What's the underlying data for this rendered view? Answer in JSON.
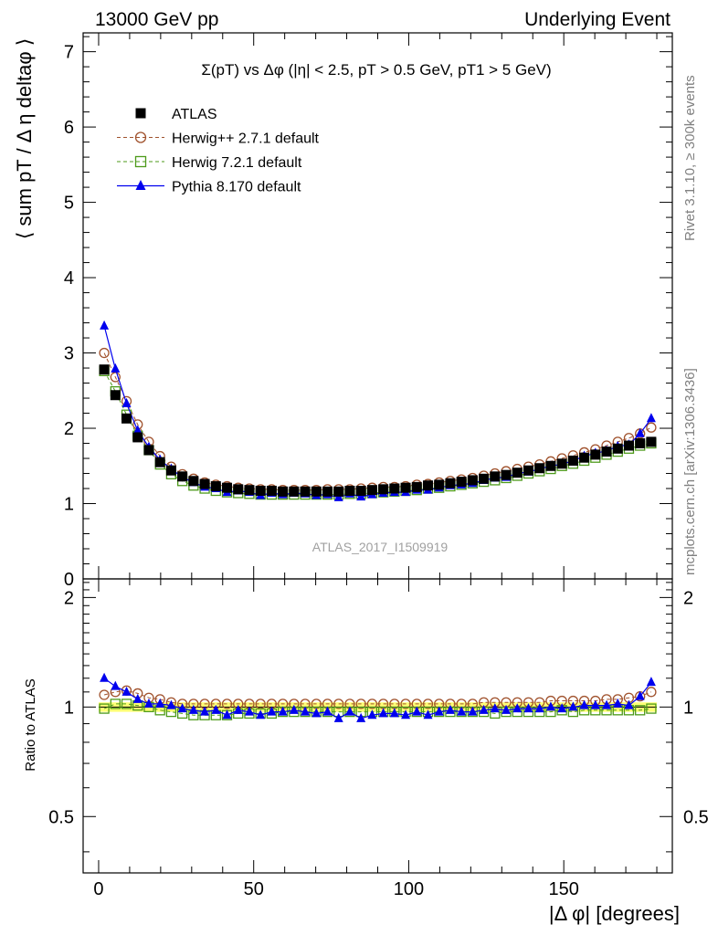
{
  "header": {
    "left": "13000 GeV pp",
    "right": "Underlying Event"
  },
  "side_labels": {
    "rivet": "Rivet 3.1.10, ≥ 300k events",
    "mcplots": "mcplots.cern.ch [arXiv:1306.3436]"
  },
  "chart_data": [
    {
      "type": "scatter",
      "title": "Σ(pT) vs Δφ (|η| < 2.5, pT > 0.5 GeV, pT1 > 5 GeV)",
      "ylabel": "⟨ sum pT / Δ η deltaφ ⟩",
      "xlabel": "",
      "xlim": [
        -5,
        185
      ],
      "ylim": [
        0,
        7.25
      ],
      "x_ticks": [
        0,
        50,
        100,
        150
      ],
      "y_ticks": [
        0,
        1,
        2,
        3,
        4,
        5,
        6,
        7
      ],
      "watermark": "ATLAS_2017_I1509919",
      "legend_position": "top-left",
      "x": [
        1.8,
        5.4,
        9.0,
        12.6,
        16.2,
        19.8,
        23.4,
        27.0,
        30.6,
        34.2,
        37.8,
        41.4,
        45.0,
        48.6,
        52.2,
        55.8,
        59.4,
        63.0,
        66.6,
        70.2,
        73.8,
        77.4,
        81.0,
        84.6,
        88.2,
        91.8,
        95.4,
        99.0,
        102.6,
        106.2,
        109.8,
        113.4,
        117.0,
        120.6,
        124.2,
        127.8,
        131.4,
        135.0,
        138.6,
        142.2,
        145.8,
        149.4,
        153.0,
        156.6,
        160.2,
        163.8,
        167.4,
        171.0,
        174.6,
        178.2
      ],
      "series": [
        {
          "name": "ATLAS",
          "color": "#000000",
          "marker": "filled-square",
          "values": [
            2.78,
            2.44,
            2.13,
            1.88,
            1.71,
            1.55,
            1.44,
            1.36,
            1.3,
            1.26,
            1.23,
            1.21,
            1.19,
            1.18,
            1.17,
            1.17,
            1.16,
            1.16,
            1.16,
            1.16,
            1.16,
            1.16,
            1.17,
            1.17,
            1.18,
            1.19,
            1.2,
            1.21,
            1.22,
            1.24,
            1.25,
            1.27,
            1.29,
            1.31,
            1.33,
            1.36,
            1.38,
            1.41,
            1.44,
            1.47,
            1.5,
            1.53,
            1.57,
            1.61,
            1.65,
            1.69,
            1.73,
            1.77,
            1.8,
            1.82
          ]
        },
        {
          "name": "Herwig++ 2.7.1 default",
          "color": "#a0522d",
          "marker": "open-circle",
          "values": [
            3.0,
            2.68,
            2.36,
            2.05,
            1.82,
            1.63,
            1.49,
            1.39,
            1.33,
            1.28,
            1.25,
            1.23,
            1.21,
            1.2,
            1.19,
            1.19,
            1.18,
            1.18,
            1.18,
            1.18,
            1.19,
            1.19,
            1.19,
            1.2,
            1.21,
            1.22,
            1.22,
            1.23,
            1.25,
            1.26,
            1.28,
            1.3,
            1.32,
            1.34,
            1.37,
            1.4,
            1.43,
            1.46,
            1.49,
            1.52,
            1.56,
            1.6,
            1.64,
            1.68,
            1.72,
            1.77,
            1.82,
            1.87,
            1.93,
            2.01
          ]
        },
        {
          "name": "Herwig 7.2.1 default",
          "color": "#4d9a1a",
          "marker": "open-square",
          "values": [
            2.76,
            2.49,
            2.18,
            1.9,
            1.71,
            1.52,
            1.39,
            1.3,
            1.24,
            1.2,
            1.17,
            1.15,
            1.14,
            1.13,
            1.12,
            1.12,
            1.12,
            1.12,
            1.12,
            1.12,
            1.12,
            1.12,
            1.13,
            1.13,
            1.14,
            1.15,
            1.16,
            1.17,
            1.18,
            1.2,
            1.21,
            1.23,
            1.25,
            1.27,
            1.29,
            1.31,
            1.34,
            1.37,
            1.4,
            1.43,
            1.46,
            1.5,
            1.53,
            1.57,
            1.61,
            1.65,
            1.69,
            1.73,
            1.77,
            1.8
          ]
        },
        {
          "name": "Pythia 8.170 default",
          "color": "#0000ee",
          "marker": "filled-triangle",
          "values": [
            3.36,
            2.79,
            2.33,
            1.97,
            1.75,
            1.58,
            1.46,
            1.35,
            1.28,
            1.22,
            1.2,
            1.15,
            1.17,
            1.15,
            1.11,
            1.14,
            1.12,
            1.14,
            1.13,
            1.11,
            1.12,
            1.08,
            1.13,
            1.09,
            1.12,
            1.14,
            1.15,
            1.15,
            1.18,
            1.18,
            1.21,
            1.24,
            1.25,
            1.27,
            1.31,
            1.34,
            1.35,
            1.4,
            1.42,
            1.46,
            1.5,
            1.52,
            1.57,
            1.63,
            1.67,
            1.7,
            1.76,
            1.78,
            1.93,
            2.13
          ]
        }
      ]
    },
    {
      "type": "scatter",
      "title": "",
      "ylabel": "Ratio to ATLAS",
      "xlabel": "|Δ φ| [degrees]",
      "xlim": [
        -5,
        185
      ],
      "ylim": [
        0.35,
        2.25
      ],
      "y_scale": "log",
      "x_ticks": [
        0,
        50,
        100,
        150
      ],
      "y_ticks": [
        0.5,
        1,
        2
      ],
      "band": "data uncertainty band around 1 (yellow)",
      "series": [
        {
          "name": "Herwig++ 2.7.1 default",
          "values": [
            1.08,
            1.1,
            1.11,
            1.09,
            1.06,
            1.05,
            1.03,
            1.02,
            1.02,
            1.02,
            1.02,
            1.02,
            1.02,
            1.02,
            1.02,
            1.02,
            1.02,
            1.02,
            1.02,
            1.02,
            1.02,
            1.02,
            1.02,
            1.02,
            1.02,
            1.02,
            1.02,
            1.02,
            1.02,
            1.02,
            1.02,
            1.02,
            1.02,
            1.02,
            1.03,
            1.03,
            1.03,
            1.03,
            1.03,
            1.03,
            1.04,
            1.04,
            1.04,
            1.04,
            1.04,
            1.05,
            1.05,
            1.06,
            1.07,
            1.1
          ]
        },
        {
          "name": "Herwig 7.2.1 default",
          "values": [
            0.99,
            1.02,
            1.02,
            1.01,
            1.0,
            0.98,
            0.97,
            0.96,
            0.95,
            0.95,
            0.95,
            0.95,
            0.96,
            0.96,
            0.96,
            0.96,
            0.97,
            0.97,
            0.97,
            0.97,
            0.97,
            0.97,
            0.97,
            0.97,
            0.97,
            0.97,
            0.97,
            0.97,
            0.97,
            0.97,
            0.97,
            0.97,
            0.97,
            0.97,
            0.97,
            0.96,
            0.97,
            0.97,
            0.97,
            0.97,
            0.97,
            0.98,
            0.97,
            0.98,
            0.98,
            0.98,
            0.98,
            0.98,
            0.98,
            0.99
          ]
        },
        {
          "name": "Pythia 8.170 default",
          "values": [
            1.2,
            1.14,
            1.1,
            1.05,
            1.02,
            1.02,
            1.01,
            0.99,
            0.98,
            0.97,
            0.98,
            0.95,
            0.98,
            0.97,
            0.95,
            0.97,
            0.97,
            0.98,
            0.97,
            0.96,
            0.97,
            0.93,
            0.97,
            0.93,
            0.95,
            0.96,
            0.96,
            0.95,
            0.97,
            0.95,
            0.97,
            0.98,
            0.97,
            0.97,
            0.98,
            0.99,
            0.98,
            0.99,
            0.99,
            0.99,
            1.0,
            0.99,
            1.0,
            1.01,
            1.01,
            1.01,
            1.02,
            1.01,
            1.07,
            1.17
          ]
        }
      ]
    }
  ]
}
